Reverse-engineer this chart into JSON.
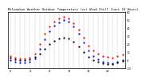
{
  "title": "Milwaukee Weather Outdoor Temperature (vs) Wind Chill (Last 24 Hours)",
  "title_fontsize": 2.8,
  "background_color": "#ffffff",
  "plot_bg_color": "#ffffff",
  "grid_color": "#888888",
  "hours": [
    0,
    1,
    2,
    3,
    4,
    5,
    6,
    7,
    8,
    9,
    10,
    11,
    12,
    13,
    14,
    15,
    16,
    17,
    18,
    19,
    20,
    21,
    22,
    23
  ],
  "temp": [
    5,
    3,
    2,
    2,
    3,
    8,
    20,
    33,
    42,
    48,
    52,
    54,
    52,
    46,
    38,
    28,
    18,
    12,
    8,
    5,
    4,
    3,
    5,
    7
  ],
  "windchill": [
    0,
    -2,
    -3,
    -3,
    -2,
    2,
    14,
    26,
    36,
    43,
    47,
    50,
    48,
    42,
    33,
    22,
    12,
    5,
    1,
    -2,
    -3,
    -4,
    -2,
    0
  ],
  "dewpoint": [
    3,
    1,
    0,
    0,
    1,
    4,
    8,
    14,
    20,
    24,
    27,
    28,
    27,
    23,
    17,
    10,
    4,
    0,
    -2,
    -4,
    -5,
    -5,
    -3,
    -1
  ],
  "temp_color": "#ff0000",
  "windchill_color": "#0000ff",
  "dewpoint_color": "#000000",
  "ylim": [
    -10,
    60
  ],
  "yticks": [
    -10,
    0,
    10,
    20,
    30,
    40,
    50,
    60
  ],
  "ytick_labels": [
    "-10",
    "0",
    "10",
    "20",
    "30",
    "40",
    "50",
    "60"
  ],
  "tick_fontsize": 2.5,
  "xlabel_fontsize": 2.5,
  "markersize": 1.2,
  "linewidth": 0.7
}
